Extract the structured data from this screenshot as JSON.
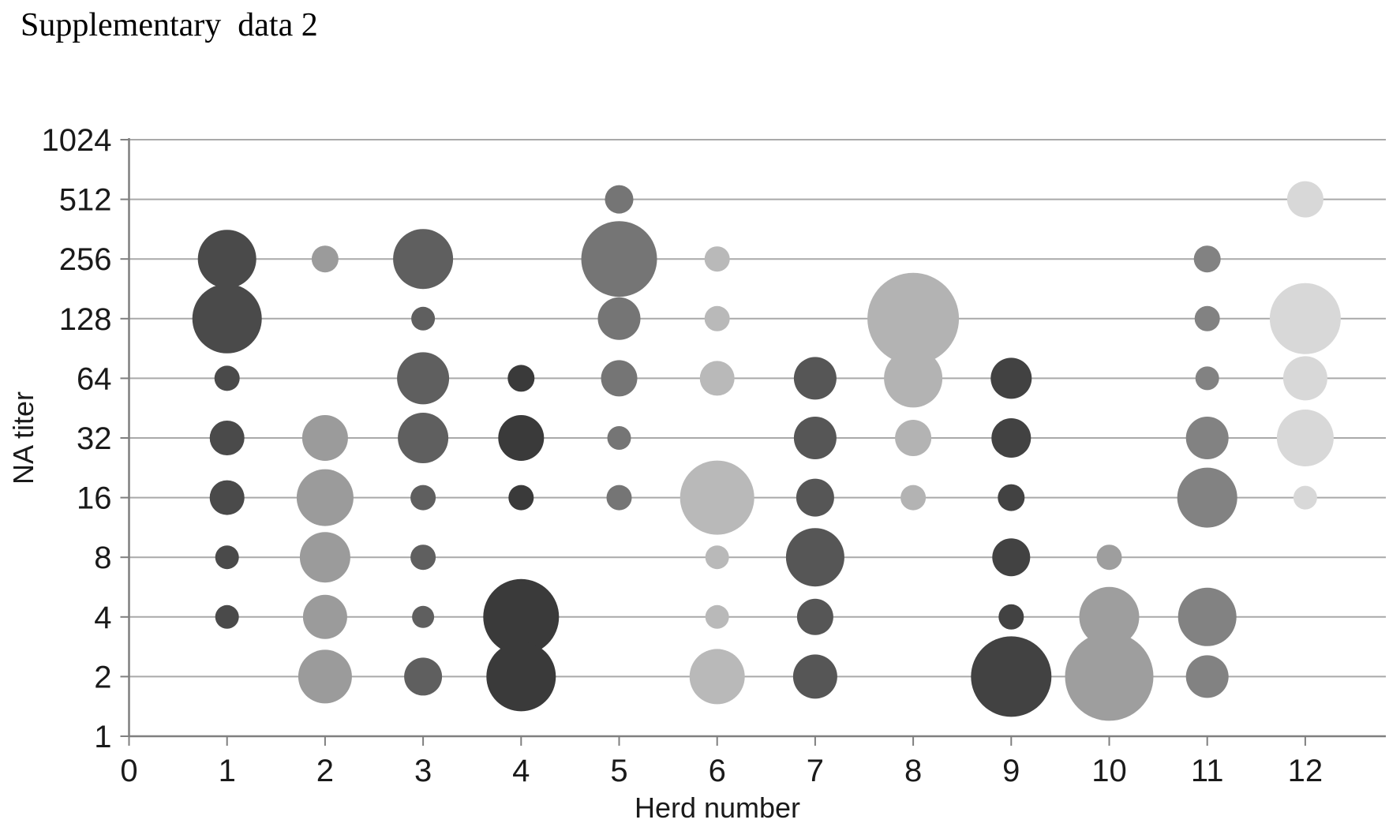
{
  "page_title": "Supplementary  data 2",
  "chart_data": {
    "type": "scatter",
    "subtype": "bubble",
    "title": "Supplementary  data 2",
    "xlabel": "Herd number",
    "ylabel": "NA titer",
    "x_ticks": [
      0,
      1,
      2,
      3,
      4,
      5,
      6,
      7,
      8,
      9,
      10,
      11,
      12
    ],
    "y_ticks": [
      1024,
      512,
      256,
      128,
      64,
      32,
      16,
      8,
      4,
      2,
      1
    ],
    "y_scale": "log2",
    "xlim": [
      0,
      12.8
    ],
    "ylim": [
      1,
      1024
    ],
    "grid": true,
    "legend": false,
    "colors": {
      "gridline": "#a9a9a9",
      "axis": "#7f7f7f",
      "label_text": "#1a1a1a",
      "background": "#ffffff"
    },
    "series": [
      {
        "name": "Herd 1",
        "herd": 1,
        "color": "#4a4a4a",
        "points": [
          {
            "titer": 256,
            "r": 37
          },
          {
            "titer": 128,
            "r": 44
          },
          {
            "titer": 64,
            "r": 16
          },
          {
            "titer": 32,
            "r": 22
          },
          {
            "titer": 16,
            "r": 22
          },
          {
            "titer": 8,
            "r": 15
          },
          {
            "titer": 4,
            "r": 15
          }
        ]
      },
      {
        "name": "Herd 2",
        "herd": 2,
        "color": "#9b9b9b",
        "points": [
          {
            "titer": 256,
            "r": 17
          },
          {
            "titer": 32,
            "r": 29
          },
          {
            "titer": 16,
            "r": 36
          },
          {
            "titer": 8,
            "r": 32
          },
          {
            "titer": 4,
            "r": 28
          },
          {
            "titer": 2,
            "r": 34
          }
        ]
      },
      {
        "name": "Herd 3",
        "herd": 3,
        "color": "#5f5f5f",
        "points": [
          {
            "titer": 256,
            "r": 38
          },
          {
            "titer": 128,
            "r": 15
          },
          {
            "titer": 64,
            "r": 33
          },
          {
            "titer": 32,
            "r": 32
          },
          {
            "titer": 16,
            "r": 16
          },
          {
            "titer": 8,
            "r": 16
          },
          {
            "titer": 4,
            "r": 14
          },
          {
            "titer": 2,
            "r": 24
          }
        ]
      },
      {
        "name": "Herd 4",
        "herd": 4,
        "color": "#3a3a3a",
        "points": [
          {
            "titer": 64,
            "r": 17
          },
          {
            "titer": 32,
            "r": 29
          },
          {
            "titer": 16,
            "r": 16
          },
          {
            "titer": 4,
            "r": 48
          },
          {
            "titer": 2,
            "r": 44
          }
        ]
      },
      {
        "name": "Herd 5",
        "herd": 5,
        "color": "#757575",
        "points": [
          {
            "titer": 512,
            "r": 18
          },
          {
            "titer": 256,
            "r": 48
          },
          {
            "titer": 128,
            "r": 27
          },
          {
            "titer": 64,
            "r": 23
          },
          {
            "titer": 32,
            "r": 15
          },
          {
            "titer": 16,
            "r": 16
          }
        ]
      },
      {
        "name": "Herd 6",
        "herd": 6,
        "color": "#b9b9b9",
        "points": [
          {
            "titer": 256,
            "r": 16
          },
          {
            "titer": 128,
            "r": 16
          },
          {
            "titer": 64,
            "r": 22
          },
          {
            "titer": 16,
            "r": 47
          },
          {
            "titer": 8,
            "r": 15
          },
          {
            "titer": 4,
            "r": 15
          },
          {
            "titer": 2,
            "r": 35
          }
        ]
      },
      {
        "name": "Herd 7",
        "herd": 7,
        "color": "#565656",
        "points": [
          {
            "titer": 64,
            "r": 27
          },
          {
            "titer": 32,
            "r": 27
          },
          {
            "titer": 16,
            "r": 24
          },
          {
            "titer": 8,
            "r": 37
          },
          {
            "titer": 4,
            "r": 23
          },
          {
            "titer": 2,
            "r": 28
          }
        ]
      },
      {
        "name": "Herd 8",
        "herd": 8,
        "color": "#b3b3b3",
        "points": [
          {
            "titer": 128,
            "r": 58
          },
          {
            "titer": 64,
            "r": 37
          },
          {
            "titer": 32,
            "r": 23
          },
          {
            "titer": 16,
            "r": 16
          }
        ]
      },
      {
        "name": "Herd 9",
        "herd": 9,
        "color": "#424242",
        "points": [
          {
            "titer": 64,
            "r": 26
          },
          {
            "titer": 32,
            "r": 25
          },
          {
            "titer": 16,
            "r": 17
          },
          {
            "titer": 8,
            "r": 24
          },
          {
            "titer": 4,
            "r": 16
          },
          {
            "titer": 2,
            "r": 51
          }
        ]
      },
      {
        "name": "Herd 10",
        "herd": 10,
        "color": "#9e9e9e",
        "points": [
          {
            "titer": 8,
            "r": 16
          },
          {
            "titer": 4,
            "r": 38
          },
          {
            "titer": 2,
            "r": 56
          }
        ]
      },
      {
        "name": "Herd 11",
        "herd": 11,
        "color": "#828282",
        "points": [
          {
            "titer": 256,
            "r": 17
          },
          {
            "titer": 128,
            "r": 16
          },
          {
            "titer": 64,
            "r": 15
          },
          {
            "titer": 32,
            "r": 27
          },
          {
            "titer": 16,
            "r": 38
          },
          {
            "titer": 4,
            "r": 37
          },
          {
            "titer": 2,
            "r": 27
          }
        ]
      },
      {
        "name": "Herd 12",
        "herd": 12,
        "color": "#d8d8d8",
        "points": [
          {
            "titer": 512,
            "r": 23
          },
          {
            "titer": 128,
            "r": 45
          },
          {
            "titer": 64,
            "r": 28
          },
          {
            "titer": 32,
            "r": 36
          },
          {
            "titer": 16,
            "r": 15
          }
        ]
      }
    ]
  }
}
